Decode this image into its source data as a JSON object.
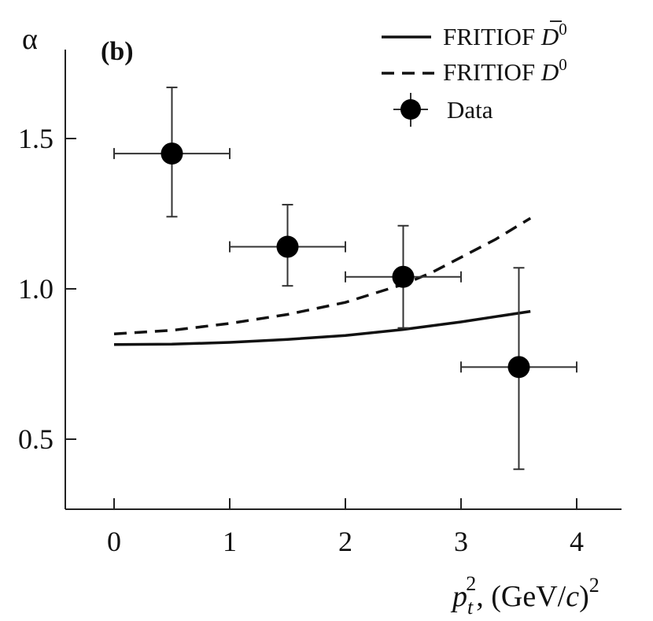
{
  "chart_data": {
    "type": "scatter",
    "panel_label": "(b)",
    "ylabel": "α",
    "xlabel": {
      "variable": "p",
      "superscript": "2",
      "subscript": "t",
      "unit_open": ", (GeV/",
      "unit_c": "c",
      "unit_close": ")",
      "unit_superscript": "2"
    },
    "xlim": [
      -0.4,
      4.4
    ],
    "ylim": [
      0.3,
      1.85
    ],
    "xticks": [
      0,
      1,
      2,
      3,
      4
    ],
    "xtick_labels": [
      "0",
      "1",
      "2",
      "3",
      "4"
    ],
    "yticks": [
      0.5,
      1.0,
      1.5
    ],
    "ytick_labels": [
      "0.5",
      "1.0",
      "1.5"
    ],
    "grid": false,
    "legend": {
      "position": "top-right",
      "entries": [
        {
          "label_prefix": "FRITIOF ",
          "label_symbol": "D",
          "label_bar": true,
          "label_superscript": "0",
          "style": "solid"
        },
        {
          "label_prefix": "FRITIOF ",
          "label_symbol": "D",
          "label_bar": false,
          "label_superscript": "0",
          "style": "dashed"
        },
        {
          "label": "Data",
          "style": "marker"
        }
      ]
    },
    "series": [
      {
        "name": "FRITIOF D̄0",
        "kind": "line",
        "style": "solid",
        "x": [
          0,
          0.5,
          1.0,
          1.5,
          2.0,
          2.5,
          3.0,
          3.6
        ],
        "y": [
          0.815,
          0.816,
          0.822,
          0.832,
          0.845,
          0.865,
          0.89,
          0.925
        ]
      },
      {
        "name": "FRITIOF D0",
        "kind": "line",
        "style": "dashed",
        "x": [
          0,
          0.5,
          1.0,
          1.5,
          2.0,
          2.25,
          2.5,
          2.75,
          3.0,
          3.3,
          3.6
        ],
        "y": [
          0.85,
          0.862,
          0.885,
          0.915,
          0.955,
          0.985,
          1.015,
          1.055,
          1.105,
          1.165,
          1.235
        ]
      },
      {
        "name": "Data",
        "kind": "errorbar",
        "points": [
          {
            "x": 0.5,
            "y": 1.45,
            "xerr": 0.5,
            "yerr_low": 0.21,
            "yerr_high": 0.22
          },
          {
            "x": 1.5,
            "y": 1.14,
            "xerr": 0.5,
            "yerr_low": 0.13,
            "yerr_high": 0.14
          },
          {
            "x": 2.5,
            "y": 1.04,
            "xerr": 0.5,
            "yerr_low": 0.17,
            "yerr_high": 0.17
          },
          {
            "x": 3.5,
            "y": 0.74,
            "xerr": 0.5,
            "yerr_low": 0.34,
            "yerr_high": 0.33
          }
        ]
      }
    ]
  }
}
